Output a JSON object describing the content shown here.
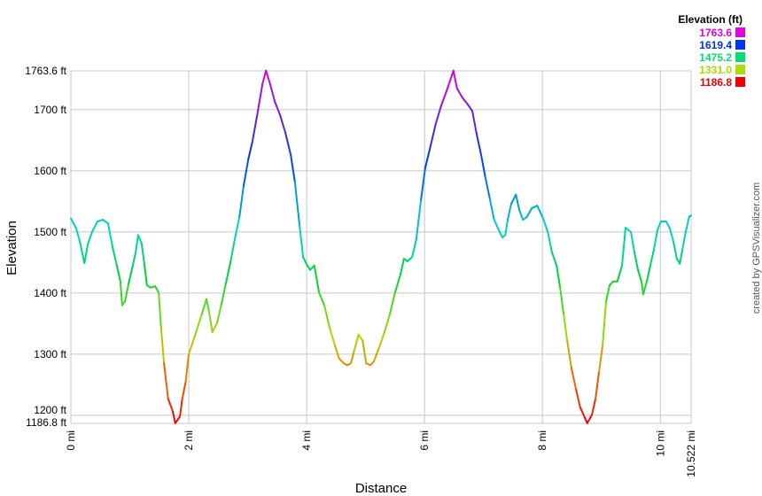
{
  "chart_data": {
    "type": "line",
    "xlabel": "Distance",
    "ylabel": "Elevation",
    "xlim": [
      0,
      10.522
    ],
    "ylim": [
      1186.8,
      1763.6
    ],
    "grid": true,
    "x_ticks": [
      {
        "v": 0,
        "label": "0 mi"
      },
      {
        "v": 2,
        "label": "2 mi"
      },
      {
        "v": 4,
        "label": "4 mi"
      },
      {
        "v": 6,
        "label": "6 mi"
      },
      {
        "v": 8,
        "label": "8 mi"
      },
      {
        "v": 10,
        "label": "10 mi"
      },
      {
        "v": 10.522,
        "label": "10.522 mi"
      }
    ],
    "y_ticks": [
      {
        "v": 1186.8,
        "label": "1186.8 ft"
      },
      {
        "v": 1200,
        "label": "1200 ft"
      },
      {
        "v": 1300,
        "label": "1300 ft"
      },
      {
        "v": 1400,
        "label": "1400 ft"
      },
      {
        "v": 1500,
        "label": "1500 ft"
      },
      {
        "v": 1600,
        "label": "1600 ft"
      },
      {
        "v": 1700,
        "label": "1700 ft"
      },
      {
        "v": 1763.6,
        "label": "1763.6 ft"
      }
    ],
    "legend": {
      "title": "Elevation (ft)",
      "placement": "top-right",
      "entries": [
        {
          "label": "1763.6",
          "color": "#e000e0"
        },
        {
          "label": "1619.4",
          "color": "#0033ee"
        },
        {
          "label": "1475.2",
          "color": "#00dd77"
        },
        {
          "label": "1331.0",
          "color": "#aadd00"
        },
        {
          "label": "1186.8",
          "color": "#ee0000"
        }
      ]
    },
    "color_scale": "elevation gradient red-yellow-green-cyan-blue-magenta",
    "x": [
      0,
      0.09,
      0.15,
      0.23,
      0.29,
      0.36,
      0.45,
      0.54,
      0.63,
      0.71,
      0.78,
      0.84,
      0.87,
      0.92,
      0.98,
      1.05,
      1.1,
      1.14,
      1.2,
      1.25,
      1.29,
      1.35,
      1.43,
      1.49,
      1.53,
      1.58,
      1.65,
      1.73,
      1.77,
      1.85,
      1.89,
      1.95,
      2.0,
      2.1,
      2.22,
      2.3,
      2.34,
      2.4,
      2.48,
      2.55,
      2.63,
      2.71,
      2.78,
      2.86,
      2.93,
      3.01,
      3.08,
      3.16,
      3.25,
      3.31,
      3.38,
      3.46,
      3.55,
      3.64,
      3.73,
      3.8,
      3.88,
      3.94,
      4.01,
      4.06,
      4.13,
      4.21,
      4.3,
      4.39,
      4.48,
      4.55,
      4.63,
      4.69,
      4.75,
      4.81,
      4.88,
      4.95,
      5.01,
      5.08,
      5.14,
      5.23,
      5.32,
      5.41,
      5.5,
      5.59,
      5.65,
      5.71,
      5.79,
      5.86,
      5.94,
      6.01,
      6.1,
      6.19,
      6.28,
      6.39,
      6.49,
      6.55,
      6.64,
      6.73,
      6.81,
      6.88,
      6.96,
      7.03,
      7.11,
      7.18,
      7.26,
      7.32,
      7.37,
      7.41,
      7.47,
      7.55,
      7.61,
      7.67,
      7.74,
      7.82,
      7.91,
      8.0,
      8.09,
      8.16,
      8.24,
      8.3,
      8.36,
      8.42,
      8.49,
      8.57,
      8.64,
      8.72,
      8.76,
      8.84,
      8.9,
      8.96,
      9.02,
      9.08,
      9.14,
      9.2,
      9.27,
      9.35,
      9.41,
      9.5,
      9.56,
      9.62,
      9.68,
      9.71,
      9.77,
      9.83,
      9.89,
      9.95,
      10.01,
      10.1,
      10.16,
      10.22,
      10.28,
      10.33,
      10.37,
      10.43,
      10.49,
      10.52
    ],
    "y": [
      1522,
      1506,
      1485,
      1449,
      1481,
      1500,
      1517,
      1520,
      1514,
      1474,
      1445,
      1419,
      1380,
      1387,
      1416,
      1445,
      1467,
      1495,
      1481,
      1445,
      1413,
      1409,
      1411,
      1401,
      1343,
      1285,
      1227,
      1206,
      1187,
      1198,
      1227,
      1256,
      1300,
      1329,
      1365,
      1390,
      1372,
      1336,
      1351,
      1380,
      1416,
      1452,
      1488,
      1525,
      1575,
      1619,
      1648,
      1691,
      1742,
      1764,
      1742,
      1713,
      1691,
      1662,
      1626,
      1582,
      1510,
      1459,
      1445,
      1438,
      1445,
      1401,
      1380,
      1343,
      1314,
      1293,
      1285,
      1282,
      1285,
      1307,
      1332,
      1322,
      1285,
      1282,
      1288,
      1311,
      1336,
      1365,
      1401,
      1430,
      1456,
      1452,
      1459,
      1488,
      1553,
      1604,
      1640,
      1677,
      1706,
      1735,
      1764,
      1735,
      1720,
      1709,
      1698,
      1662,
      1626,
      1590,
      1553,
      1520,
      1503,
      1491,
      1495,
      1520,
      1546,
      1561,
      1535,
      1520,
      1525,
      1539,
      1543,
      1525,
      1500,
      1467,
      1445,
      1409,
      1365,
      1322,
      1278,
      1242,
      1213,
      1196,
      1187,
      1201,
      1227,
      1271,
      1314,
      1387,
      1413,
      1419,
      1419,
      1445,
      1507,
      1500,
      1467,
      1438,
      1419,
      1398,
      1419,
      1445,
      1471,
      1503,
      1517,
      1517,
      1506,
      1485,
      1456,
      1448,
      1469,
      1500,
      1525,
      1527
    ]
  },
  "credit": "created by GPSVisualizer.com"
}
